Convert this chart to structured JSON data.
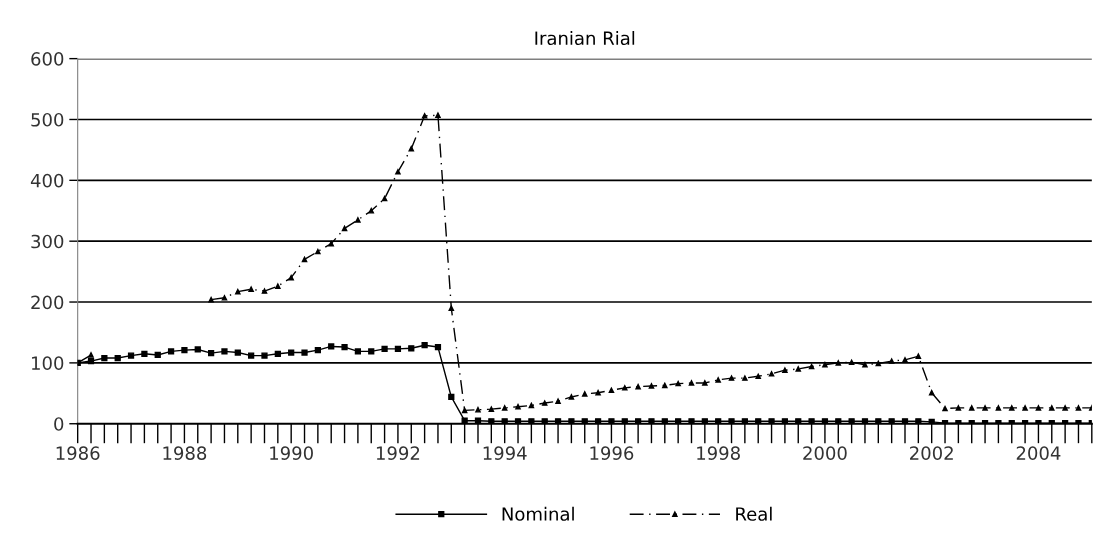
{
  "chart_data": {
    "type": "line",
    "title": "Iranian Rial",
    "x": [
      1986.0,
      1986.25,
      1986.5,
      1986.75,
      1987.0,
      1987.25,
      1987.5,
      1987.75,
      1988.0,
      1988.25,
      1988.5,
      1988.75,
      1989.0,
      1989.25,
      1989.5,
      1989.75,
      1990.0,
      1990.25,
      1990.5,
      1990.75,
      1991.0,
      1991.25,
      1991.5,
      1991.75,
      1992.0,
      1992.25,
      1992.5,
      1992.75,
      1993.0,
      1993.25,
      1993.5,
      1993.75,
      1994.0,
      1994.25,
      1994.5,
      1994.75,
      1995.0,
      1995.25,
      1995.5,
      1995.75,
      1996.0,
      1996.25,
      1996.5,
      1996.75,
      1997.0,
      1997.25,
      1997.5,
      1997.75,
      1998.0,
      1998.25,
      1998.5,
      1998.75,
      1999.0,
      1999.25,
      1999.5,
      1999.75,
      2000.0,
      2000.25,
      2000.5,
      2000.75,
      2001.0,
      2001.25,
      2001.5,
      2001.75,
      2002.0,
      2002.25,
      2002.5,
      2002.75,
      2003.0,
      2003.25,
      2003.5,
      2003.75,
      2004.0,
      2004.25,
      2004.5,
      2004.75,
      2005.0
    ],
    "series": [
      {
        "name": "Nominal",
        "color": "#000000",
        "marker": "square",
        "line_style": "solid",
        "values": [
          100,
          103,
          108,
          108,
          112,
          115,
          113,
          119,
          121,
          122,
          116,
          119,
          117,
          112,
          112,
          115,
          117,
          117,
          121,
          127,
          126,
          119,
          119,
          123,
          123,
          124,
          129,
          126,
          44,
          5,
          5,
          4,
          4,
          4,
          4,
          4,
          4,
          4,
          4,
          4,
          4,
          4,
          4,
          4,
          4,
          4,
          4,
          4,
          4,
          4,
          4,
          4,
          4,
          4,
          4,
          4,
          4,
          4,
          4,
          4,
          4,
          4,
          4,
          4,
          3,
          1,
          1,
          1,
          1,
          1,
          1,
          1,
          1,
          1,
          1,
          1,
          1
        ]
      },
      {
        "name": "Real",
        "color": "#000000",
        "marker": "triangle",
        "line_style": "dashed",
        "values": [
          100,
          113,
          null,
          null,
          null,
          null,
          null,
          null,
          null,
          null,
          204,
          207,
          217,
          221,
          218,
          226,
          240,
          270,
          283,
          296,
          321,
          335,
          350,
          370,
          414,
          452,
          506,
          507,
          190,
          22,
          23,
          24,
          26,
          28,
          30,
          34,
          37,
          44,
          49,
          51,
          55,
          59,
          61,
          62,
          63,
          66,
          67,
          67,
          72,
          75,
          75,
          78,
          82,
          88,
          90,
          94,
          97,
          100,
          101,
          97,
          99,
          103,
          105,
          111,
          51,
          25,
          26,
          26,
          26,
          26,
          26,
          26,
          26,
          26,
          26,
          26,
          26
        ]
      }
    ],
    "xlim": [
      1986,
      2005
    ],
    "xticks": [
      1986,
      1988,
      1990,
      1992,
      1994,
      1996,
      1998,
      2000,
      2002,
      2004
    ],
    "ylim": [
      0,
      600
    ],
    "yticks": [
      0,
      100,
      200,
      300,
      400,
      500,
      600
    ],
    "grid": "y",
    "legend": "bottom"
  }
}
